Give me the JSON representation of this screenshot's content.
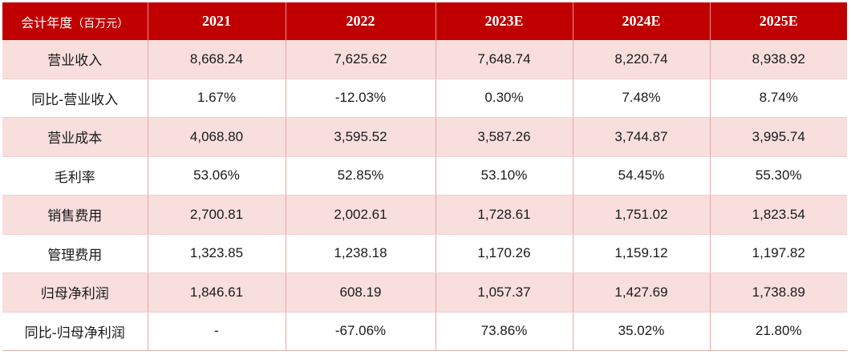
{
  "table": {
    "header": {
      "first_label": "会计年度",
      "first_unit": "（百万元）",
      "columns": [
        "2021",
        "2022",
        "2023E",
        "2024E",
        "2025E"
      ]
    },
    "rows": [
      {
        "label": "营业收入",
        "values": [
          "8,668.24",
          "7,625.62",
          "7,648.74",
          "8,220.74",
          "8,938.92"
        ]
      },
      {
        "label": "同比-营业收入",
        "values": [
          "1.67%",
          "-12.03%",
          "0.30%",
          "7.48%",
          "8.74%"
        ]
      },
      {
        "label": "营业成本",
        "values": [
          "4,068.80",
          "3,595.52",
          "3,587.26",
          "3,744.87",
          "3,995.74"
        ]
      },
      {
        "label": "毛利率",
        "values": [
          "53.06%",
          "52.85%",
          "53.10%",
          "54.45%",
          "55.30%"
        ]
      },
      {
        "label": "销售费用",
        "values": [
          "2,700.81",
          "2,002.61",
          "1,728.61",
          "1,751.02",
          "1,823.54"
        ]
      },
      {
        "label": "管理费用",
        "values": [
          "1,323.85",
          "1,238.18",
          "1,170.26",
          "1,159.12",
          "1,197.82"
        ]
      },
      {
        "label": "归母净利润",
        "values": [
          "1,846.61",
          "608.19",
          "1,057.37",
          "1,427.69",
          "1,738.89"
        ]
      },
      {
        "label": "同比-归母净利润",
        "values": [
          "-",
          "-67.06%",
          "73.86%",
          "35.02%",
          "21.80%"
        ]
      }
    ],
    "colors": {
      "header_bg": "#c00000",
      "header_text": "#ffffff",
      "shaded_row_bg": "#f9dede",
      "plain_row_bg": "#ffffff"
    }
  }
}
